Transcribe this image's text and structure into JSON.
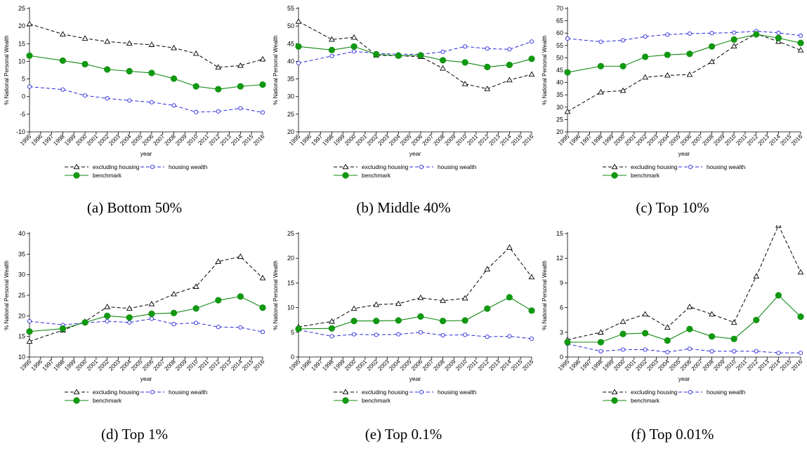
{
  "colors": {
    "excluding": "#000000",
    "housing": "#2b2bdc",
    "benchmark": "#118811",
    "benchmark_fill": "#109a10"
  },
  "chart_data": [
    {
      "type": "line",
      "caption": "(a) Bottom 50%",
      "xlabel": "year",
      "ylabel": "% National Personal Wealth",
      "x": [
        1995,
        1996,
        1997,
        1998,
        1999,
        2000,
        2001,
        2002,
        2003,
        2004,
        2005,
        2006,
        2007,
        2008,
        2009,
        2010,
        2011,
        2012,
        2013,
        2014,
        2015,
        2016
      ],
      "ylim": [
        -10,
        25
      ],
      "yticks": [
        -10,
        -5,
        0,
        5,
        10,
        15,
        20,
        25
      ],
      "ytick_labels": [
        "-10",
        "-5",
        "0",
        "5",
        "10",
        "15",
        "20",
        "25"
      ],
      "legend": [
        "excluding housing",
        "housing wealth",
        "benchmark"
      ],
      "legend_position": "bottom",
      "series": [
        {
          "key": "excluding",
          "x": [
            1995,
            1998,
            2000,
            2002,
            2004,
            2006,
            2008,
            2010,
            2012,
            2014,
            2016
          ],
          "values": [
            20.6,
            17.7,
            16.5,
            15.6,
            15.1,
            14.7,
            13.8,
            12.2,
            8.3,
            8.8,
            10.6
          ]
        },
        {
          "key": "housing",
          "x": [
            1995,
            1998,
            2000,
            2002,
            2004,
            2006,
            2008,
            2010,
            2012,
            2014,
            2016
          ],
          "values": [
            2.8,
            2.0,
            0.3,
            -0.5,
            -1.1,
            -1.6,
            -2.5,
            -4.4,
            -4.2,
            -3.3,
            -4.5
          ]
        },
        {
          "key": "benchmark",
          "x": [
            1995,
            1998,
            2000,
            2002,
            2004,
            2006,
            2008,
            2010,
            2012,
            2014,
            2016
          ],
          "values": [
            11.6,
            10.2,
            9.2,
            7.7,
            7.2,
            6.7,
            5.1,
            2.9,
            2.1,
            2.9,
            3.4
          ]
        }
      ]
    },
    {
      "type": "line",
      "caption": "(b) Middle 40%",
      "xlabel": "year",
      "ylabel": "% National Personal Wealth",
      "x": [
        1995,
        1996,
        1997,
        1998,
        1999,
        2000,
        2001,
        2002,
        2003,
        2004,
        2005,
        2006,
        2007,
        2008,
        2009,
        2010,
        2011,
        2012,
        2013,
        2014,
        2015,
        2016
      ],
      "ylim": [
        20,
        55
      ],
      "yticks": [
        20,
        25,
        30,
        35,
        40,
        45,
        50,
        55
      ],
      "ytick_labels": [
        "20",
        "25",
        "30",
        "35",
        "40",
        "45",
        "50",
        "55"
      ],
      "legend": [
        "excluding housing",
        "housing wealth",
        "benchmark"
      ],
      "legend_position": "bottom",
      "series": [
        {
          "key": "excluding",
          "x": [
            1995,
            1998,
            2000,
            2002,
            2004,
            2006,
            2008,
            2010,
            2012,
            2014,
            2016
          ],
          "values": [
            51.3,
            46.2,
            46.8,
            41.7,
            41.6,
            41.3,
            38.0,
            33.6,
            32.2,
            34.7,
            36.3
          ]
        },
        {
          "key": "housing",
          "x": [
            1995,
            1998,
            2000,
            2002,
            2004,
            2006,
            2008,
            2010,
            2012,
            2014,
            2016
          ],
          "values": [
            39.5,
            41.5,
            42.8,
            42.3,
            42.0,
            42.0,
            42.7,
            44.2,
            43.6,
            43.4,
            45.6
          ]
        },
        {
          "key": "benchmark",
          "x": [
            1995,
            1998,
            2000,
            2002,
            2004,
            2006,
            2008,
            2010,
            2012,
            2014,
            2016
          ],
          "values": [
            44.2,
            43.2,
            44.2,
            42.0,
            41.6,
            41.7,
            40.3,
            39.7,
            38.4,
            39.0,
            40.7
          ]
        }
      ]
    },
    {
      "type": "line",
      "caption": "(c) Top 10%",
      "xlabel": "year",
      "ylabel": "% National Personal Wealth",
      "x": [
        1995,
        1996,
        1997,
        1998,
        1999,
        2000,
        2001,
        2002,
        2003,
        2004,
        2005,
        2006,
        2007,
        2008,
        2009,
        2010,
        2011,
        2012,
        2013,
        2014,
        2015,
        2016
      ],
      "ylim": [
        20,
        70
      ],
      "yticks": [
        20,
        25,
        30,
        35,
        40,
        45,
        50,
        55,
        60,
        65,
        70
      ],
      "ytick_labels": [
        "20",
        "25",
        "30",
        "35",
        "40",
        "45",
        "50",
        "55",
        "60",
        "65",
        "70"
      ],
      "legend": [
        "excluding housing",
        "housing wealth",
        "benchmark"
      ],
      "legend_position": "bottom",
      "series": [
        {
          "key": "excluding",
          "x": [
            1995,
            1998,
            2000,
            2002,
            2004,
            2006,
            2008,
            2010,
            2012,
            2014,
            2016
          ],
          "values": [
            28.2,
            36.1,
            36.7,
            42.1,
            42.9,
            43.2,
            48.4,
            54.7,
            59.7,
            56.6,
            53.1
          ]
        },
        {
          "key": "housing",
          "x": [
            1995,
            1998,
            2000,
            2002,
            2004,
            2006,
            2008,
            2010,
            2012,
            2014,
            2016
          ],
          "values": [
            57.8,
            56.5,
            57.1,
            58.6,
            59.4,
            59.8,
            60.0,
            60.2,
            60.8,
            60.1,
            59.0
          ]
        },
        {
          "key": "benchmark",
          "x": [
            1995,
            1998,
            2000,
            2002,
            2004,
            2006,
            2008,
            2010,
            2012,
            2014,
            2016
          ],
          "values": [
            44.1,
            46.6,
            46.6,
            50.4,
            51.2,
            51.6,
            54.6,
            57.4,
            59.5,
            58.0,
            56.0
          ]
        }
      ]
    },
    {
      "type": "line",
      "caption": "(d) Top 1%",
      "xlabel": "year",
      "ylabel": "% National Personal Wealth",
      "x": [
        1995,
        1996,
        1997,
        1998,
        1999,
        2000,
        2001,
        2002,
        2003,
        2004,
        2005,
        2006,
        2007,
        2008,
        2009,
        2010,
        2011,
        2012,
        2013,
        2014,
        2015,
        2016
      ],
      "ylim": [
        10,
        40
      ],
      "yticks": [
        10,
        15,
        20,
        25,
        30,
        35,
        40
      ],
      "ytick_labels": [
        "10",
        "15",
        "20",
        "25",
        "30",
        "35",
        "40"
      ],
      "legend": [
        "excluding housing",
        "housing wealth",
        "benchmark"
      ],
      "legend_position": "bottom",
      "series": [
        {
          "key": "excluding",
          "x": [
            1995,
            1998,
            2000,
            2002,
            2004,
            2006,
            2008,
            2010,
            2012,
            2014,
            2016
          ],
          "values": [
            13.8,
            16.5,
            18.6,
            22.2,
            21.8,
            22.9,
            25.3,
            27.1,
            33.2,
            34.4,
            29.2
          ]
        },
        {
          "key": "housing",
          "x": [
            1995,
            1998,
            2000,
            2002,
            2004,
            2006,
            2008,
            2010,
            2012,
            2014,
            2016
          ],
          "values": [
            18.7,
            17.8,
            18.3,
            18.7,
            18.4,
            19.3,
            18.0,
            18.3,
            17.3,
            17.2,
            16.1
          ]
        },
        {
          "key": "benchmark",
          "x": [
            1995,
            1998,
            2000,
            2002,
            2004,
            2006,
            2008,
            2010,
            2012,
            2014,
            2016
          ],
          "values": [
            16.2,
            16.9,
            18.4,
            20.0,
            19.6,
            20.5,
            20.7,
            21.8,
            23.8,
            24.7,
            22.0
          ]
        }
      ]
    },
    {
      "type": "line",
      "caption": "(e) Top 0.1%",
      "xlabel": "year",
      "ylabel": "% National Personal Wealth",
      "x": [
        1995,
        1996,
        1997,
        1998,
        1999,
        2000,
        2001,
        2002,
        2003,
        2004,
        2005,
        2006,
        2007,
        2008,
        2009,
        2010,
        2011,
        2012,
        2013,
        2014,
        2015,
        2016
      ],
      "ylim": [
        0,
        25
      ],
      "yticks": [
        0,
        5,
        10,
        15,
        20,
        25
      ],
      "ytick_labels": [
        "0",
        "5",
        "10",
        "15",
        "20",
        "25"
      ],
      "legend": [
        "excluding housing",
        "housing wealth",
        "benchmark"
      ],
      "legend_position": "bottom",
      "series": [
        {
          "key": "excluding",
          "x": [
            1995,
            1998,
            2000,
            2002,
            2004,
            2006,
            2008,
            2010,
            2012,
            2014,
            2016
          ],
          "values": [
            6.1,
            7.2,
            9.8,
            10.6,
            10.8,
            12.0,
            11.4,
            11.9,
            17.8,
            22.2,
            16.2
          ]
        },
        {
          "key": "housing",
          "x": [
            1995,
            1998,
            2000,
            2002,
            2004,
            2006,
            2008,
            2010,
            2012,
            2014,
            2016
          ],
          "values": [
            5.5,
            4.2,
            4.6,
            4.5,
            4.6,
            5.0,
            4.4,
            4.5,
            4.1,
            4.2,
            3.7
          ]
        },
        {
          "key": "benchmark",
          "x": [
            1995,
            1998,
            2000,
            2002,
            2004,
            2006,
            2008,
            2010,
            2012,
            2014,
            2016
          ],
          "values": [
            5.7,
            5.8,
            7.3,
            7.3,
            7.4,
            8.2,
            7.3,
            7.4,
            9.8,
            12.1,
            9.4
          ]
        }
      ]
    },
    {
      "type": "line",
      "caption": "(f) Top 0.01%",
      "xlabel": "year",
      "ylabel": "% National Personal Wealth",
      "x": [
        1995,
        1996,
        1997,
        1998,
        1999,
        2000,
        2001,
        2002,
        2003,
        2004,
        2005,
        2006,
        2007,
        2008,
        2009,
        2010,
        2011,
        2012,
        2013,
        2014,
        2015,
        2016
      ],
      "ylim": [
        0,
        15
      ],
      "yticks": [
        0,
        3,
        6,
        9,
        12,
        15
      ],
      "ytick_labels": [
        "0",
        "3",
        "6",
        "9",
        "12",
        "15"
      ],
      "legend": [
        "excluding housing",
        "housing wealth",
        "benchmark"
      ],
      "legend_position": "bottom",
      "series": [
        {
          "key": "excluding",
          "x": [
            1995,
            1998,
            2000,
            2002,
            2004,
            2006,
            2008,
            2010,
            2012,
            2014,
            2016
          ],
          "values": [
            2.1,
            3.0,
            4.3,
            5.2,
            3.6,
            6.1,
            5.2,
            4.2,
            9.8,
            16.0,
            10.3
          ]
        },
        {
          "key": "housing",
          "x": [
            1995,
            1998,
            2000,
            2002,
            2004,
            2006,
            2008,
            2010,
            2012,
            2014,
            2016
          ],
          "values": [
            1.6,
            0.7,
            0.9,
            0.9,
            0.6,
            1.0,
            0.7,
            0.7,
            0.7,
            0.5,
            0.5
          ]
        },
        {
          "key": "benchmark",
          "x": [
            1995,
            1998,
            2000,
            2002,
            2004,
            2006,
            2008,
            2010,
            2012,
            2014,
            2016
          ],
          "values": [
            1.8,
            1.8,
            2.8,
            2.9,
            2.0,
            3.4,
            2.5,
            2.2,
            4.5,
            7.5,
            4.9
          ]
        }
      ]
    }
  ]
}
